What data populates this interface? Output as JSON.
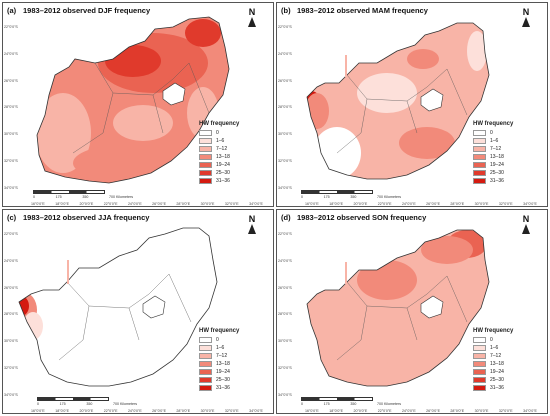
{
  "panels": [
    {
      "label": "(a)",
      "title": "1983–2012 observed DJF frequency"
    },
    {
      "label": "(b)",
      "title": "1983–2012 observed MAM frequency"
    },
    {
      "label": "(c)",
      "title": "1983–2012 observed JJA frequency"
    },
    {
      "label": "(d)",
      "title": "1983–2012 observed SON frequency"
    }
  ],
  "north_label": "N",
  "legend": {
    "title": "HW frequency",
    "classes": [
      {
        "label": "0",
        "color": "#ffffff"
      },
      {
        "label": "1–6",
        "color": "#fde0da"
      },
      {
        "label": "7–12",
        "color": "#f8b4a7"
      },
      {
        "label": "13–18",
        "color": "#f28a7a"
      },
      {
        "label": "19–24",
        "color": "#ea6352"
      },
      {
        "label": "25–30",
        "color": "#e03a2c"
      },
      {
        "label": "31–36",
        "color": "#d41a10"
      }
    ]
  },
  "scale_bar": {
    "labels": [
      "0",
      "175",
      "350",
      "700 Kilometers"
    ]
  },
  "lon_labels": [
    "16°0'0\"E",
    "18°0'0\"E",
    "20°0'0\"E",
    "22°0'0\"E",
    "24°0'0\"E",
    "26°0'0\"E",
    "28°0'0\"E",
    "30°0'0\"E",
    "32°0'0\"E",
    "34°0'0\"E"
  ],
  "lat_labels": [
    "22°0'0\"S",
    "24°0'0\"S",
    "26°0'0\"S",
    "28°0'0\"S",
    "30°0'0\"S",
    "32°0'0\"S",
    "34°0'0\"S"
  ]
}
